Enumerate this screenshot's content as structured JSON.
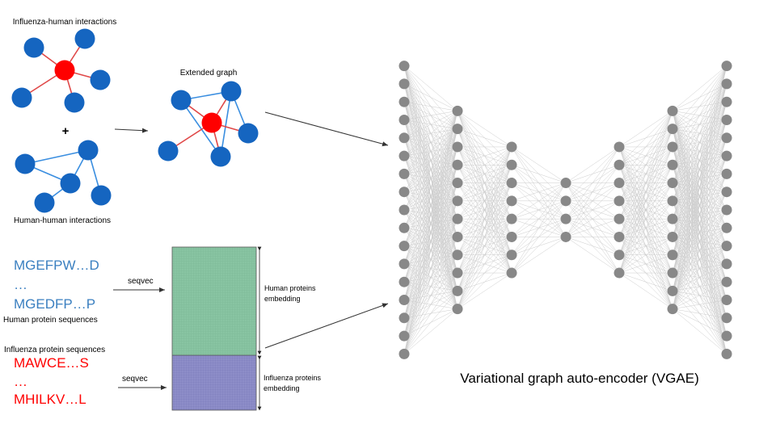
{
  "colors": {
    "host_node": "#1565c0",
    "virus_node": "#ff0000",
    "virus_edge": "#e04848",
    "host_edge": "#3a8ee0",
    "nn_node": "#888888",
    "nn_edge": "#cccccc",
    "human_embed_fill": "#88c4a2",
    "influenza_embed_fill": "#8d8dc8",
    "human_seq_text": "#3a7fc0",
    "influenza_seq_text": "#ff0000"
  },
  "graphs": {
    "influenza_human_title": "Influenza-human interactions",
    "plus": "+",
    "human_human_title": "Human-human interactions",
    "extended_title": "Extended graph"
  },
  "sequences": {
    "human_line1": "MGEFPW…D",
    "human_ellipsis": "…",
    "human_line2": "MGEDFP…P",
    "human_caption": "Human protein sequences",
    "influenza_caption": "Influenza protein sequences",
    "influenza_line1": "MAWCE…S",
    "influenza_ellipsis": "…",
    "influenza_line2": "MHILKV…L"
  },
  "embedding": {
    "arrow_top_label": "seqvec",
    "arrow_bottom_label": "seqvec",
    "human_label_line1": "Human proteins",
    "human_label_line2": "embedding",
    "influenza_label_line1": "Influenza proteins",
    "influenza_label_line2": "embedding"
  },
  "network": {
    "caption": "Variational graph auto-encoder (VGAE)",
    "layer_sizes": [
      17,
      12,
      8,
      4,
      8,
      12,
      17
    ]
  }
}
